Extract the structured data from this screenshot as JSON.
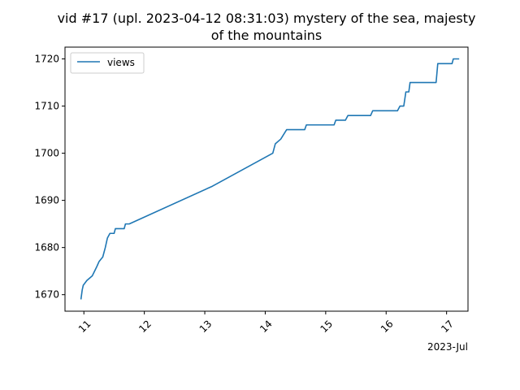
{
  "chart_data": {
    "type": "line",
    "title_lines": [
      "vid #17 (upl. 2023-04-12 08:31:03) mystery of the sea, majesty",
      "of the mountains"
    ],
    "x_offset_label": "2023-Jul",
    "xlabel": "",
    "ylabel": "",
    "legend": {
      "placement": "upper-left",
      "entries": [
        "views"
      ]
    },
    "grid": false,
    "xlim": [
      "2023-07-10T16:30",
      "2023-07-17T08:30"
    ],
    "ylim": [
      1666.5,
      1722.5
    ],
    "x_ticks": [
      {
        "value": "2023-07-11",
        "label": "11"
      },
      {
        "value": "2023-07-12",
        "label": "12"
      },
      {
        "value": "2023-07-13",
        "label": "13"
      },
      {
        "value": "2023-07-14",
        "label": "14"
      },
      {
        "value": "2023-07-15",
        "label": "15"
      },
      {
        "value": "2023-07-16",
        "label": "16"
      },
      {
        "value": "2023-07-17",
        "label": "17"
      }
    ],
    "y_ticks": [
      1670,
      1680,
      1690,
      1700,
      1710,
      1720
    ],
    "series": [
      {
        "name": "views",
        "color": "#1f77b4",
        "x": [
          "2023-07-10T22:50",
          "2023-07-10T23:20",
          "2023-07-10T23:45",
          "2023-07-11T01:10",
          "2023-07-11T03:20",
          "2023-07-11T05:10",
          "2023-07-11T06:00",
          "2023-07-11T07:30",
          "2023-07-11T08:30",
          "2023-07-11T09:20",
          "2023-07-11T10:20",
          "2023-07-11T11:00",
          "2023-07-11T11:30",
          "2023-07-11T12:00",
          "2023-07-11T12:30",
          "2023-07-11T16:00",
          "2023-07-11T16:30",
          "2023-07-11T17:30",
          "2023-07-11T18:00",
          "2023-07-13T03:00",
          "2023-07-14T03:00",
          "2023-07-14T04:00",
          "2023-07-14T06:10",
          "2023-07-14T08:30",
          "2023-07-14T15:40",
          "2023-07-14T16:20",
          "2023-07-15T03:20",
          "2023-07-15T04:00",
          "2023-07-15T07:50",
          "2023-07-15T08:50",
          "2023-07-15T17:50",
          "2023-07-15T18:40",
          "2023-07-16T04:30",
          "2023-07-16T05:30",
          "2023-07-16T07:00",
          "2023-07-16T07:50",
          "2023-07-16T09:00",
          "2023-07-16T09:30",
          "2023-07-16T19:50",
          "2023-07-16T20:30",
          "2023-07-17T02:10",
          "2023-07-17T02:40",
          "2023-07-17T05:00"
        ],
        "y": [
          1669,
          1671,
          1672,
          1673,
          1674,
          1676,
          1677,
          1678,
          1680,
          1682,
          1683,
          1683,
          1683,
          1683,
          1684,
          1684,
          1685,
          1685,
          1685,
          1693,
          1700,
          1702,
          1703,
          1705,
          1705,
          1706,
          1706,
          1707,
          1707,
          1708,
          1708,
          1709,
          1709,
          1710,
          1710,
          1713,
          1713,
          1715,
          1715,
          1719,
          1719,
          1720,
          1720
        ]
      }
    ]
  }
}
